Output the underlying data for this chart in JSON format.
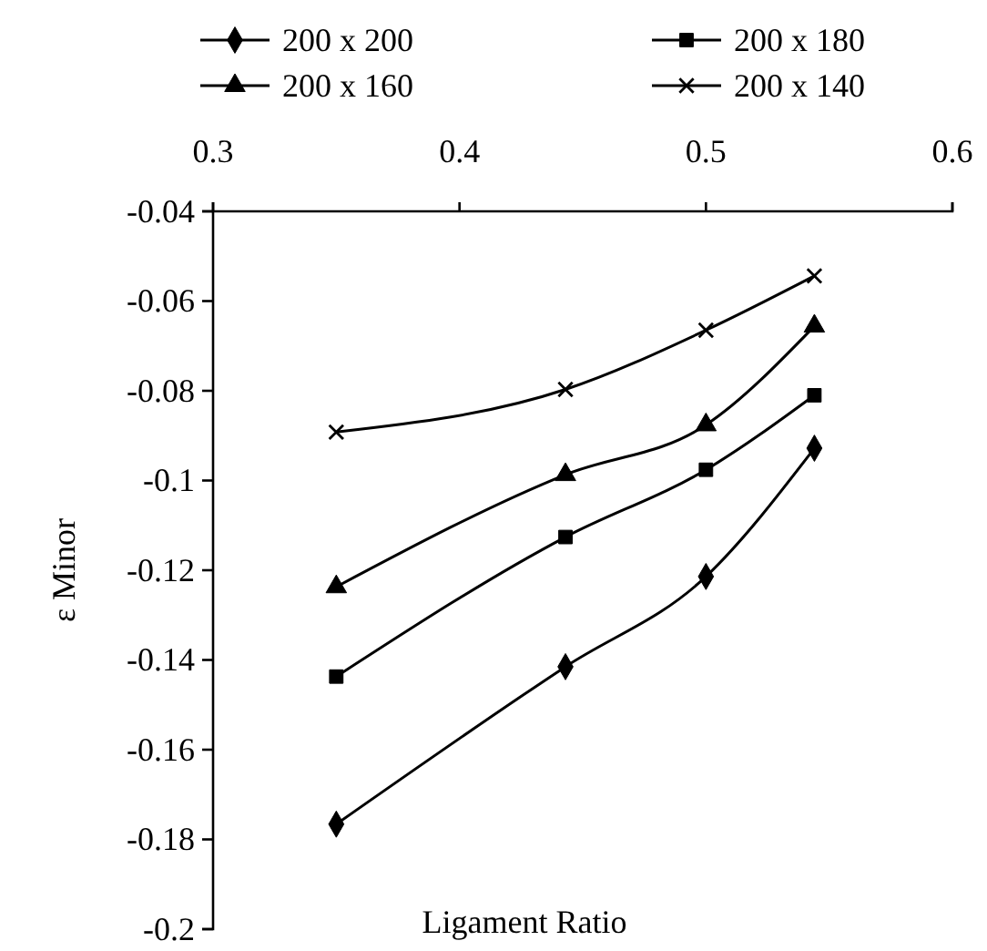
{
  "chart_data": {
    "type": "line",
    "xlabel": "Ligament Ratio",
    "ylabel": "ε Minor",
    "x": [
      0.35,
      0.443,
      0.5,
      0.544
    ],
    "xlim": [
      0.3,
      0.6
    ],
    "xticks": [
      0.3,
      0.4,
      0.5,
      0.6
    ],
    "ylim": [
      -0.2,
      -0.04
    ],
    "yticks": [
      -0.2,
      -0.18,
      -0.16,
      -0.14,
      -0.12,
      -0.1,
      -0.08,
      -0.06,
      -0.04
    ],
    "grid": false,
    "legend": "top",
    "line_style": "solid",
    "series": [
      {
        "name": "200 x 200",
        "color": "#000000",
        "marker": "diamond",
        "values": [
          -0.1766,
          -0.1415,
          -0.1214,
          -0.0928
        ]
      },
      {
        "name": "200 x 180",
        "color": "#000000",
        "marker": "square",
        "values": [
          -0.1437,
          -0.1126,
          -0.0976,
          -0.081
        ]
      },
      {
        "name": "200 x 160",
        "color": "#000000",
        "marker": "triangle",
        "values": [
          -0.1237,
          -0.0987,
          -0.0876,
          -0.0656
        ]
      },
      {
        "name": "200 x 140",
        "color": "#000000",
        "marker": "cross",
        "values": [
          -0.0892,
          -0.0797,
          -0.0665,
          -0.0544
        ]
      }
    ]
  }
}
